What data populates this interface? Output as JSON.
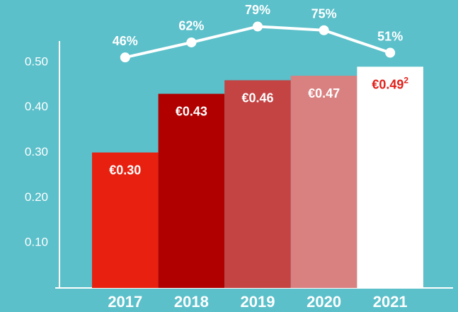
{
  "chart_data": {
    "type": "bar",
    "categories": [
      "2017",
      "2018",
      "2019",
      "2020",
      "2021"
    ],
    "series": [
      {
        "type": "bar",
        "colors": [
          "#e8200f",
          "#b00000",
          "#c44343",
          "#d98080",
          "#ffffff"
        ],
        "label_colors": [
          "#ffffff",
          "#ffffff",
          "#ffffff",
          "#ffffff",
          "#e0201a"
        ],
        "values": [
          0.3,
          0.43,
          0.46,
          0.47,
          0.49
        ],
        "value_labels": [
          "€0.30",
          "€0.43",
          "€0.46",
          "€0.47",
          "€0.49"
        ],
        "footnote": "2"
      },
      {
        "type": "line",
        "axis": "y2",
        "color": "#ffffff",
        "values": [
          46,
          62,
          79,
          75,
          51
        ],
        "value_labels": [
          "46%",
          "62%",
          "79%",
          "75%",
          "51%"
        ]
      }
    ],
    "ylim": [
      0,
      0.55
    ],
    "yticks": [
      {
        "value": 0.1,
        "label": "0.10"
      },
      {
        "value": 0.2,
        "label": "0.20"
      },
      {
        "value": 0.3,
        "label": "0.30"
      },
      {
        "value": 0.4,
        "label": "0.40"
      },
      {
        "value": 0.5,
        "label": "0.50"
      }
    ],
    "y2lim": [
      -200,
      65
    ],
    "grid": false
  }
}
